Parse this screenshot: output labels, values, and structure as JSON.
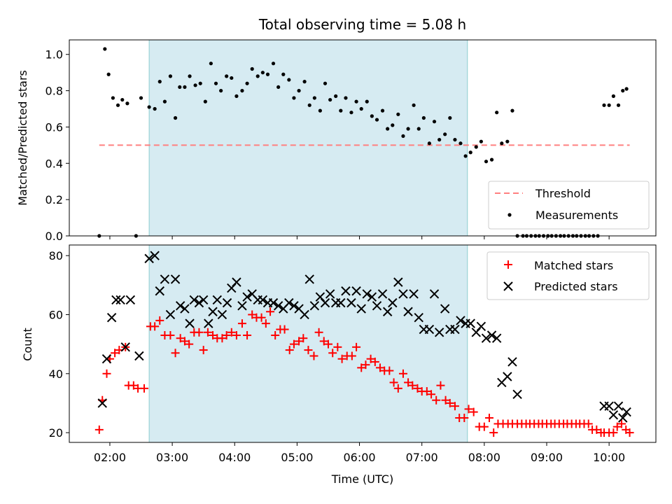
{
  "chart_data": [
    {
      "type": "scatter",
      "title": "Total observing time = 5.08 h",
      "xlabel": "",
      "ylabel": "Matched/Predicted stars",
      "xlim": [
        1.35,
        10.75
      ],
      "ylim": [
        0.0,
        1.08
      ],
      "yticks": [
        0.0,
        0.2,
        0.4,
        0.6,
        0.8,
        1.0
      ],
      "ytick_labels": [
        "0.0",
        "0.2",
        "0.4",
        "0.6",
        "0.8",
        "1.0"
      ],
      "xticks": [
        2,
        3,
        4,
        5,
        6,
        7,
        8,
        9,
        10
      ],
      "shaded_interval": [
        2.63,
        7.73
      ],
      "grid": false,
      "legend_position": "lower-right",
      "threshold": {
        "name": "Threshold",
        "y": 0.5,
        "x_range": [
          1.83,
          10.33
        ],
        "color": "#ff8080"
      },
      "series": [
        {
          "name": "Measurements",
          "color": "#000000",
          "x": [
            1.83,
            1.92,
            1.98,
            2.05,
            2.13,
            2.2,
            2.28,
            2.42,
            2.5,
            2.63,
            2.72,
            2.8,
            2.88,
            2.97,
            3.05,
            3.12,
            3.2,
            3.28,
            3.37,
            3.45,
            3.53,
            3.62,
            3.7,
            3.78,
            3.87,
            3.95,
            4.03,
            4.12,
            4.2,
            4.28,
            4.37,
            4.45,
            4.53,
            4.62,
            4.7,
            4.78,
            4.87,
            4.95,
            5.03,
            5.12,
            5.2,
            5.28,
            5.37,
            5.45,
            5.53,
            5.62,
            5.7,
            5.78,
            5.87,
            5.95,
            6.03,
            6.12,
            6.2,
            6.28,
            6.37,
            6.45,
            6.53,
            6.62,
            6.7,
            6.78,
            6.87,
            6.95,
            7.03,
            7.12,
            7.2,
            7.28,
            7.37,
            7.45,
            7.53,
            7.62,
            7.7,
            7.78,
            7.87,
            7.95,
            8.03,
            8.12,
            8.2,
            8.28,
            8.37,
            8.45,
            8.53,
            8.62,
            8.68,
            8.75,
            8.82,
            8.88,
            8.95,
            9.02,
            9.08,
            9.15,
            9.22,
            9.28,
            9.35,
            9.42,
            9.48,
            9.55,
            9.62,
            9.68,
            9.75,
            9.82,
            9.92,
            10.0,
            10.07,
            10.15,
            10.22,
            10.28
          ],
          "y": [
            0.0,
            1.03,
            0.89,
            0.76,
            0.72,
            0.75,
            0.73,
            0.0,
            0.76,
            0.71,
            0.7,
            0.85,
            0.74,
            0.88,
            0.65,
            0.82,
            0.82,
            0.88,
            0.83,
            0.84,
            0.74,
            0.95,
            0.84,
            0.8,
            0.88,
            0.87,
            0.77,
            0.8,
            0.84,
            0.92,
            0.88,
            0.9,
            0.89,
            0.95,
            0.82,
            0.89,
            0.86,
            0.76,
            0.8,
            0.85,
            0.72,
            0.76,
            0.69,
            0.84,
            0.75,
            0.77,
            0.69,
            0.76,
            0.68,
            0.74,
            0.7,
            0.74,
            0.66,
            0.64,
            0.69,
            0.59,
            0.61,
            0.67,
            0.55,
            0.59,
            0.72,
            0.59,
            0.65,
            0.51,
            0.63,
            0.53,
            0.56,
            0.65,
            0.53,
            0.51,
            0.44,
            0.46,
            0.49,
            0.52,
            0.41,
            0.42,
            0.68,
            0.51,
            0.52,
            0.69,
            0.0,
            0.0,
            0.0,
            0.0,
            0.0,
            0.0,
            0.0,
            0.0,
            0.0,
            0.0,
            0.0,
            0.0,
            0.0,
            0.0,
            0.0,
            0.0,
            0.0,
            0.0,
            0.0,
            0.0,
            0.72,
            0.72,
            0.77,
            0.72,
            0.8,
            0.81
          ]
        }
      ]
    },
    {
      "type": "scatter",
      "title": "",
      "xlabel": "Time (UTC)",
      "ylabel": "Count",
      "xlim": [
        1.35,
        10.75
      ],
      "ylim": [
        16.7,
        83.6
      ],
      "yticks": [
        20,
        40,
        60,
        80
      ],
      "ytick_labels": [
        "20",
        "40",
        "60",
        "80"
      ],
      "xticks": [
        2,
        3,
        4,
        5,
        6,
        7,
        8,
        9,
        10
      ],
      "xtick_labels": [
        "02:00",
        "03:00",
        "04:00",
        "05:00",
        "06:00",
        "07:00",
        "08:00",
        "09:00",
        "10:00"
      ],
      "shaded_interval": [
        2.63,
        7.73
      ],
      "grid": false,
      "legend_position": "top-right",
      "series": [
        {
          "name": "Matched stars",
          "color": "#ff0000",
          "marker": "+",
          "x": [
            1.83,
            1.88,
            1.95,
            2.0,
            2.08,
            2.15,
            2.25,
            2.3,
            2.38,
            2.45,
            2.55,
            2.65,
            2.72,
            2.8,
            2.88,
            2.97,
            3.05,
            3.13,
            3.2,
            3.27,
            3.35,
            3.43,
            3.5,
            3.57,
            3.65,
            3.72,
            3.8,
            3.87,
            3.95,
            4.03,
            4.12,
            4.2,
            4.28,
            4.35,
            4.43,
            4.5,
            4.57,
            4.65,
            4.73,
            4.8,
            4.88,
            4.95,
            5.03,
            5.1,
            5.18,
            5.27,
            5.35,
            5.43,
            5.5,
            5.57,
            5.65,
            5.72,
            5.8,
            5.88,
            5.95,
            6.03,
            6.1,
            6.18,
            6.25,
            6.33,
            6.4,
            6.48,
            6.55,
            6.62,
            6.7,
            6.78,
            6.85,
            6.93,
            7.0,
            7.08,
            7.15,
            7.23,
            7.3,
            7.38,
            7.45,
            7.53,
            7.6,
            7.68,
            7.75,
            7.83,
            7.92,
            8.0,
            8.08,
            8.15,
            8.22,
            8.3,
            8.38,
            8.45,
            8.53,
            8.6,
            8.67,
            8.73,
            8.8,
            8.87,
            8.93,
            9.0,
            9.07,
            9.13,
            9.2,
            9.27,
            9.33,
            9.4,
            9.47,
            9.53,
            9.6,
            9.67,
            9.73,
            9.8,
            9.87,
            9.92,
            10.0,
            10.07,
            10.13,
            10.2,
            10.27,
            10.33
          ],
          "y": [
            21,
            31,
            40,
            45,
            47,
            48,
            49,
            36,
            36,
            35,
            35,
            56,
            56,
            58,
            53,
            53,
            47,
            52,
            51,
            50,
            54,
            54,
            48,
            54,
            53,
            52,
            52,
            53,
            54,
            53,
            57,
            53,
            60,
            59,
            59,
            57,
            61,
            53,
            55,
            55,
            48,
            50,
            51,
            52,
            48,
            46,
            54,
            51,
            50,
            47,
            49,
            45,
            46,
            46,
            49,
            42,
            43,
            45,
            44,
            42,
            41,
            41,
            37,
            35,
            40,
            37,
            36,
            35,
            34,
            34,
            33,
            31,
            36,
            31,
            30,
            29,
            25,
            25,
            28,
            27,
            22,
            22,
            25,
            20,
            23,
            23,
            23,
            23,
            23,
            23,
            23,
            23,
            23,
            23,
            23,
            23,
            23,
            23,
            23,
            23,
            23,
            23,
            23,
            23,
            23,
            23,
            21,
            21,
            20,
            20,
            20,
            20,
            22,
            23,
            21,
            20
          ]
        },
        {
          "name": "Predicted stars",
          "color": "#000000",
          "marker": "x",
          "x": [
            1.88,
            1.95,
            2.03,
            2.1,
            2.17,
            2.25,
            2.33,
            2.47,
            2.63,
            2.72,
            2.8,
            2.88,
            2.97,
            3.05,
            3.13,
            3.2,
            3.28,
            3.35,
            3.43,
            3.5,
            3.58,
            3.65,
            3.72,
            3.8,
            3.88,
            3.95,
            4.03,
            4.12,
            4.2,
            4.28,
            4.37,
            4.45,
            4.53,
            4.62,
            4.7,
            4.78,
            4.87,
            4.95,
            5.03,
            5.12,
            5.2,
            5.28,
            5.37,
            5.45,
            5.53,
            5.62,
            5.7,
            5.78,
            5.87,
            5.95,
            6.03,
            6.12,
            6.2,
            6.28,
            6.37,
            6.45,
            6.53,
            6.62,
            6.7,
            6.78,
            6.87,
            6.95,
            7.03,
            7.12,
            7.2,
            7.28,
            7.37,
            7.45,
            7.53,
            7.62,
            7.7,
            7.78,
            7.87,
            7.95,
            8.03,
            8.12,
            8.2,
            8.28,
            8.37,
            8.45,
            8.53,
            9.92,
            10.0,
            10.07,
            10.15,
            10.22,
            10.28
          ],
          "y": [
            30,
            45,
            59,
            65,
            65,
            49,
            65,
            46,
            79,
            80,
            68,
            72,
            60,
            72,
            63,
            62,
            57,
            65,
            64,
            65,
            57,
            61,
            65,
            60,
            64,
            69,
            71,
            63,
            66,
            67,
            65,
            65,
            64,
            64,
            63,
            62,
            64,
            63,
            62,
            60,
            72,
            63,
            66,
            64,
            67,
            64,
            64,
            68,
            64,
            68,
            62,
            67,
            66,
            63,
            67,
            61,
            64,
            71,
            67,
            61,
            67,
            59,
            55,
            55,
            67,
            54,
            62,
            55,
            55,
            58,
            57,
            57,
            54,
            56,
            52,
            53,
            52,
            37,
            39,
            44,
            33,
            29,
            29,
            26,
            29,
            25,
            27
          ]
        }
      ]
    }
  ]
}
